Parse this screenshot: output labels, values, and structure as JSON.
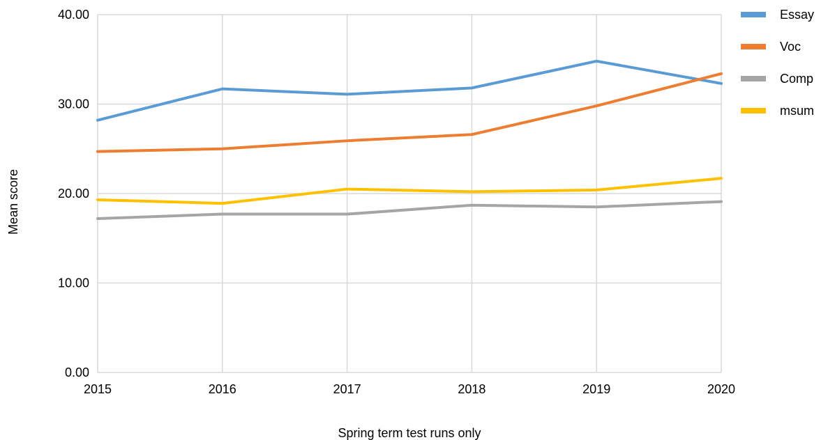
{
  "chart_data": {
    "type": "line",
    "title": "",
    "xlabel": "Spring term test runs only",
    "ylabel": "Mean score",
    "x": [
      "2015",
      "2016",
      "2017",
      "2018",
      "2019",
      "2020"
    ],
    "ylim": [
      0,
      40
    ],
    "yticks": [
      "0.00",
      "10.00",
      "20.00",
      "30.00",
      "40.00"
    ],
    "grid": true,
    "legend_position": "right",
    "series": [
      {
        "name": "Essay",
        "color": "#5B9BD5",
        "values": [
          28.2,
          31.7,
          31.1,
          31.8,
          34.8,
          32.3
        ]
      },
      {
        "name": "Voc",
        "color": "#ED7D31",
        "values": [
          24.7,
          25.0,
          25.9,
          26.6,
          29.8,
          33.4
        ]
      },
      {
        "name": "Comp",
        "color": "#A5A5A5",
        "values": [
          17.2,
          17.7,
          17.7,
          18.7,
          18.5,
          19.1
        ]
      },
      {
        "name": "msum",
        "color": "#FFC000",
        "values": [
          19.3,
          18.9,
          20.5,
          20.2,
          20.4,
          21.7
        ]
      }
    ]
  }
}
